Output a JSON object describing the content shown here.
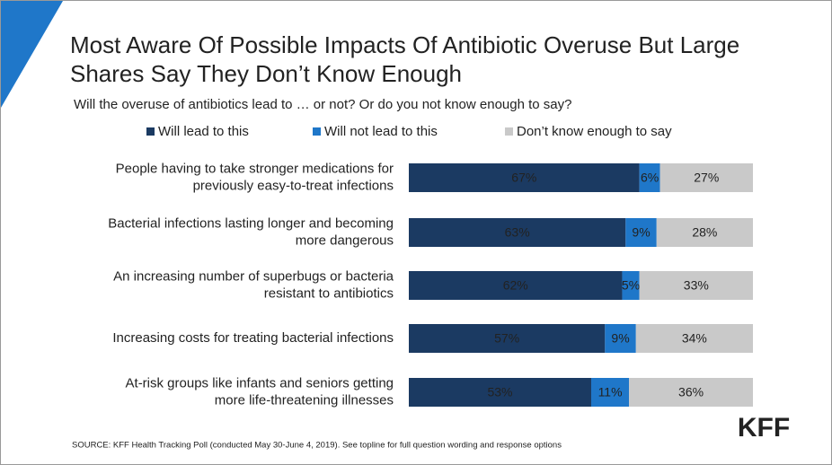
{
  "chart_data": {
    "type": "stacked-bar-horizontal",
    "title": [
      "Most Aware Of Possible Impacts Of Antibiotic Overuse But Large",
      "Shares Say They Don’t Know Enough"
    ],
    "subtitle": "Will the overuse of antibiotics lead to … or not? Or do you not know enough to say?",
    "categories": [
      [
        "People having to take stronger medications for",
        "previously easy-to-treat infections"
      ],
      [
        "Bacterial infections lasting longer and becoming",
        "more dangerous"
      ],
      [
        "An increasing number of superbugs or bacteria",
        "resistant to antibiotics"
      ],
      [
        "Increasing costs for treating bacterial infections"
      ],
      [
        "At-risk groups like infants and seniors getting",
        "more life-threatening illnesses"
      ]
    ],
    "series": [
      {
        "name": "Will lead to this",
        "color": "#1b3a62",
        "values": [
          67,
          63,
          62,
          57,
          53
        ],
        "value_labels": [
          "67%",
          "63%",
          "62%",
          "57%",
          "53%"
        ]
      },
      {
        "name": "Will not lead to this",
        "color": "#1f77c9",
        "values": [
          6,
          9,
          5,
          9,
          11
        ],
        "value_labels": [
          "6%",
          "9%",
          "5%",
          "9%",
          "11%"
        ]
      },
      {
        "name": "Don’t know enough to say",
        "color": "#c9c9c9",
        "values": [
          27,
          28,
          33,
          34,
          36
        ],
        "value_labels": [
          "27%",
          "28%",
          "33%",
          "34%",
          "36%"
        ]
      }
    ],
    "xlim": [
      0,
      100
    ],
    "source": "SOURCE: KFF Health Tracking Poll (conducted May 30-June 4, 2019). See topline for full question wording and response options",
    "logo": "KFF"
  }
}
